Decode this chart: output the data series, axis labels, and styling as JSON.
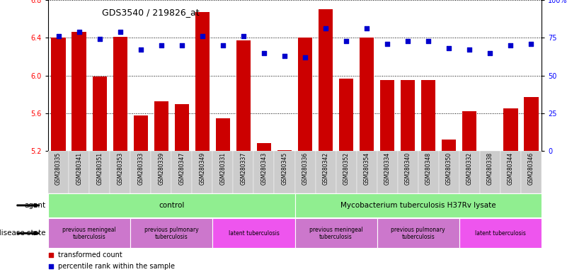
{
  "title": "GDS3540 / 219826_at",
  "samples": [
    "GSM280335",
    "GSM280341",
    "GSM280351",
    "GSM280353",
    "GSM280333",
    "GSM280339",
    "GSM280347",
    "GSM280349",
    "GSM280331",
    "GSM280337",
    "GSM280343",
    "GSM280345",
    "GSM280336",
    "GSM280342",
    "GSM280352",
    "GSM280354",
    "GSM280334",
    "GSM280340",
    "GSM280348",
    "GSM280350",
    "GSM280332",
    "GSM280338",
    "GSM280344",
    "GSM280346"
  ],
  "bar_values": [
    6.4,
    6.46,
    5.99,
    6.41,
    5.58,
    5.73,
    5.7,
    6.67,
    5.55,
    6.37,
    5.28,
    5.21,
    6.4,
    6.7,
    5.97,
    6.4,
    5.95,
    5.95,
    5.95,
    5.32,
    5.62,
    5.12,
    5.65,
    5.77
  ],
  "percentile_values": [
    76,
    79,
    74,
    79,
    67,
    70,
    70,
    76,
    70,
    76,
    65,
    63,
    62,
    81,
    73,
    81,
    71,
    73,
    73,
    68,
    67,
    65,
    70,
    71
  ],
  "ylim_left": [
    5.2,
    6.8
  ],
  "ylim_right": [
    0,
    100
  ],
  "yticks_left": [
    5.2,
    5.6,
    6.0,
    6.4,
    6.8
  ],
  "yticks_right": [
    0,
    25,
    50,
    75,
    100
  ],
  "bar_color": "#cc0000",
  "scatter_color": "#0000cc",
  "agent_groups": [
    {
      "label": "control",
      "start": 0,
      "end": 11,
      "color": "#90EE90"
    },
    {
      "label": "Mycobacterium tuberculosis H37Rv lysate",
      "start": 12,
      "end": 23,
      "color": "#90EE90"
    }
  ],
  "disease_groups": [
    {
      "label": "previous meningeal\ntuberculosis",
      "start": 0,
      "end": 3,
      "color": "#CC77CC"
    },
    {
      "label": "previous pulmonary\ntuberculosis",
      "start": 4,
      "end": 7,
      "color": "#CC77CC"
    },
    {
      "label": "latent tuberculosis",
      "start": 8,
      "end": 11,
      "color": "#EE55EE"
    },
    {
      "label": "previous meningeal\ntuberculosis",
      "start": 12,
      "end": 15,
      "color": "#CC77CC"
    },
    {
      "label": "previous pulmonary\ntuberculosis",
      "start": 16,
      "end": 19,
      "color": "#CC77CC"
    },
    {
      "label": "latent tuberculosis",
      "start": 20,
      "end": 23,
      "color": "#EE55EE"
    }
  ]
}
